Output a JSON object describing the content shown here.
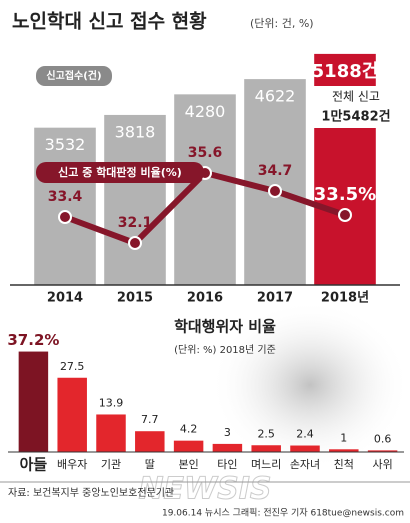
{
  "title": "노인학대 신고 접수 현황",
  "unit": "(단위: 건, %)",
  "chart_data": [
    {
      "type": "combo",
      "categories": [
        "2014",
        "2015",
        "2016",
        "2017",
        "2018년"
      ],
      "series": [
        {
          "name": "신고접수(건)",
          "type": "bar",
          "colors": [
            "#b3b3b3",
            "#b3b3b3",
            "#b3b3b3",
            "#b3b3b3",
            "#c8122c"
          ],
          "values": [
            3532,
            3818,
            4280,
            4622,
            5188
          ],
          "value_labels": [
            "3532",
            "3818",
            "4280",
            "4622",
            "5188건"
          ]
        },
        {
          "name": "신고 중 학대판정 비율(%)",
          "type": "line",
          "axis": "y2",
          "color": "#86162a",
          "values": [
            33.4,
            32.1,
            35.6,
            34.7,
            33.5
          ],
          "value_labels": [
            "33.4",
            "32.1",
            "35.6",
            "34.7",
            "33.5%"
          ]
        }
      ],
      "ylim": [
        0,
        5500
      ],
      "y2lim": [
        30,
        38
      ],
      "annotation": [
        "전체 신고",
        "1만5482건"
      ]
    },
    {
      "type": "bar",
      "title": "학대행위자 비율",
      "subtitle": "(단위: %) 2018년 기준",
      "categories": [
        "아들",
        "배우자",
        "기관",
        "딸",
        "본인",
        "타인",
        "며느리",
        "손자녀",
        "친척",
        "사위"
      ],
      "values": [
        37.2,
        27.5,
        13.9,
        7.7,
        4.2,
        3,
        2.5,
        2.4,
        1,
        0.6
      ],
      "value_labels": [
        "37.2%",
        "27.5",
        "13.9",
        "7.7",
        "4.2",
        "3",
        "2.5",
        "2.4",
        "1",
        "0.6"
      ],
      "colors": [
        "#7d1423",
        "#e3262c",
        "#e3262c",
        "#e3262c",
        "#e3262c",
        "#e3262c",
        "#e3262c",
        "#e3262c",
        "#e3262c",
        "#e3262c"
      ],
      "ylim": [
        0,
        40
      ]
    }
  ],
  "source": "자료: 보건복지부 중앙노인보호전문기관",
  "credit": "19.06.14 뉴시스 그래픽: 전진우 기자 618tue@newsis.com",
  "watermark": "NEWSIS"
}
